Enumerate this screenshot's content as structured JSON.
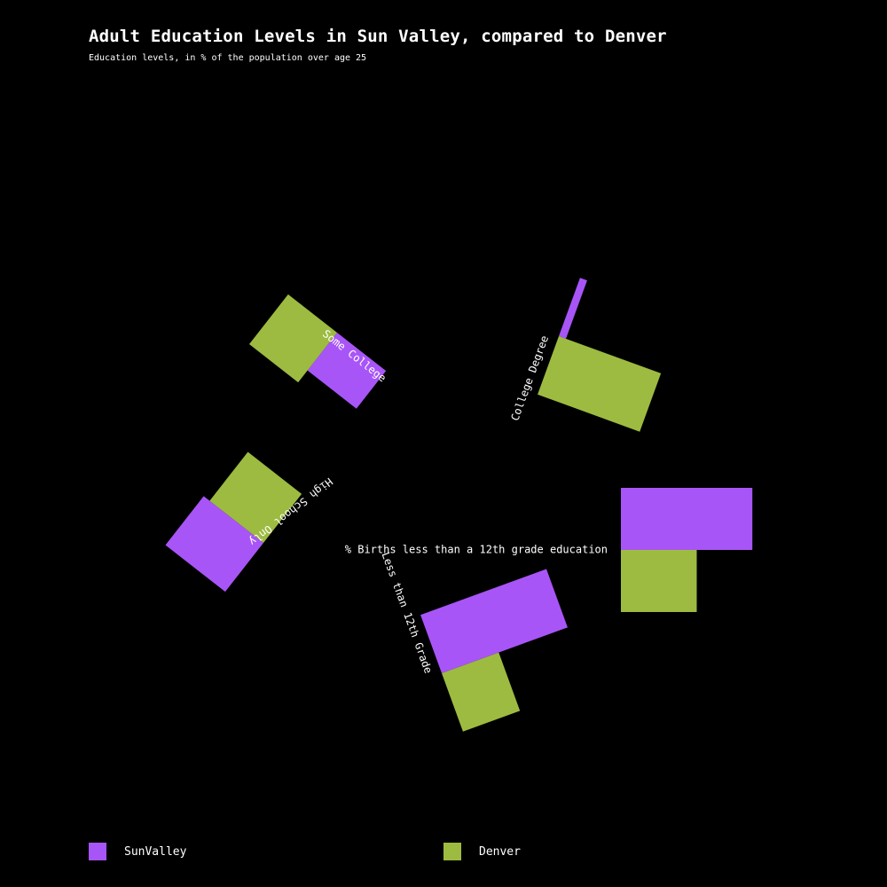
{
  "title": "Adult Education Levels in Sun Valley, compared to Denver",
  "subtitle": "Education levels, in % of the population over age 25",
  "colors": {
    "SunValley": "#a855f7",
    "Denver": "#9dbb41",
    "background": "#000000",
    "text": "#ffffff"
  },
  "legend": [
    {
      "label": "SunValley",
      "color": "#a855f7"
    },
    {
      "label": "Denver",
      "color": "#9dbb41"
    }
  ],
  "chart_data": {
    "type": "bar",
    "categories": [
      "College Degree",
      "Some College",
      "High School Only",
      "Less than 12th Grade",
      "% Births less than a 12th grade education"
    ],
    "series": [
      {
        "name": "SunValley",
        "values": [
          3,
          19,
          30,
          53,
          52
        ]
      },
      {
        "name": "Denver",
        "values": [
          43,
          25,
          27,
          24,
          30
        ]
      }
    ]
  }
}
